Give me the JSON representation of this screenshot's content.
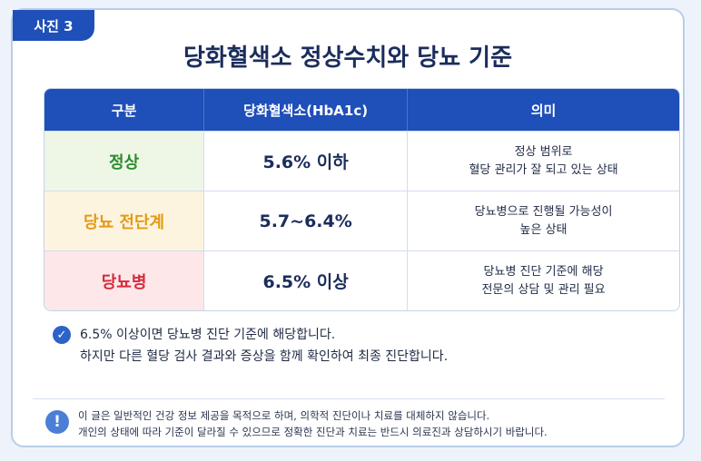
{
  "tag": "사진 3",
  "title": "당화혈색소 정상수치와 당뇨 기준",
  "table": {
    "headers": [
      "구분",
      "당화혈색소(HbA1c)",
      "의미"
    ],
    "rows": [
      {
        "category": "정상",
        "color": "#2e8b2e",
        "value": "5.6% 이하",
        "meaning": [
          "정상 범위로",
          "혈당 관리가 잘 되고 있는 상태"
        ]
      },
      {
        "category": "당뇨 전단계",
        "color": "#e39a16",
        "value": "5.7~6.4%",
        "meaning": [
          "당뇨병으로 진행될 가능성이",
          "높은 상태"
        ]
      },
      {
        "category": "당뇨병",
        "color": "#d62b3b",
        "value": "6.5% 이상",
        "meaning": [
          "당뇨병 진단 기준에 해당",
          "전문의 상담 및 관리 필요"
        ]
      }
    ]
  },
  "note": {
    "icon": "check-circle-icon",
    "line1": "6.5% 이상이면 당뇨병 진단 기준에 해당합니다.",
    "line2": "하지만 다른 혈당 검사 결과와 증상을 함께 확인하여 최종 진단합니다."
  },
  "disclaimer": {
    "icon": "exclamation-circle-icon",
    "line1": "이 글은 일반적인 건강 정보 제공을 목적으로 하며, 의학적 진단이나 치료를 대체하지 않습니다.",
    "line2": "개인의 상태에 따라 기준이 달라질 수 있으므로 정확한 진단과 치료는 반드시 의료진과 상담하시기 바랍니다."
  }
}
